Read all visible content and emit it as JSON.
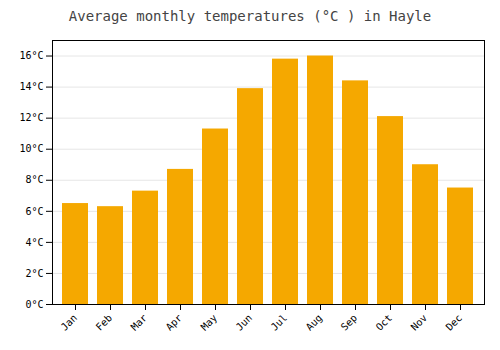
{
  "chart_data": {
    "type": "bar",
    "title": "Average monthly temperatures (°C ) in Hayle",
    "categories": [
      "Jan",
      "Feb",
      "Mar",
      "Apr",
      "May",
      "Jun",
      "Jul",
      "Aug",
      "Sep",
      "Oct",
      "Nov",
      "Dec"
    ],
    "values": [
      6.5,
      6.3,
      7.3,
      8.7,
      11.3,
      13.9,
      15.8,
      16.0,
      14.4,
      12.1,
      9.0,
      7.5
    ],
    "color": "#F5A800",
    "ylim": [
      0,
      17
    ],
    "yticks": [
      {
        "value": 0,
        "label": "0°C"
      },
      {
        "value": 2,
        "label": "2°C"
      },
      {
        "value": 4,
        "label": "4°C"
      },
      {
        "value": 6,
        "label": "6°C"
      },
      {
        "value": 8,
        "label": "8°C"
      },
      {
        "value": 10,
        "label": "10°C"
      },
      {
        "value": 12,
        "label": "12°C"
      },
      {
        "value": 14,
        "label": "14°C"
      },
      {
        "value": 16,
        "label": "16°C"
      }
    ],
    "grid": true
  }
}
